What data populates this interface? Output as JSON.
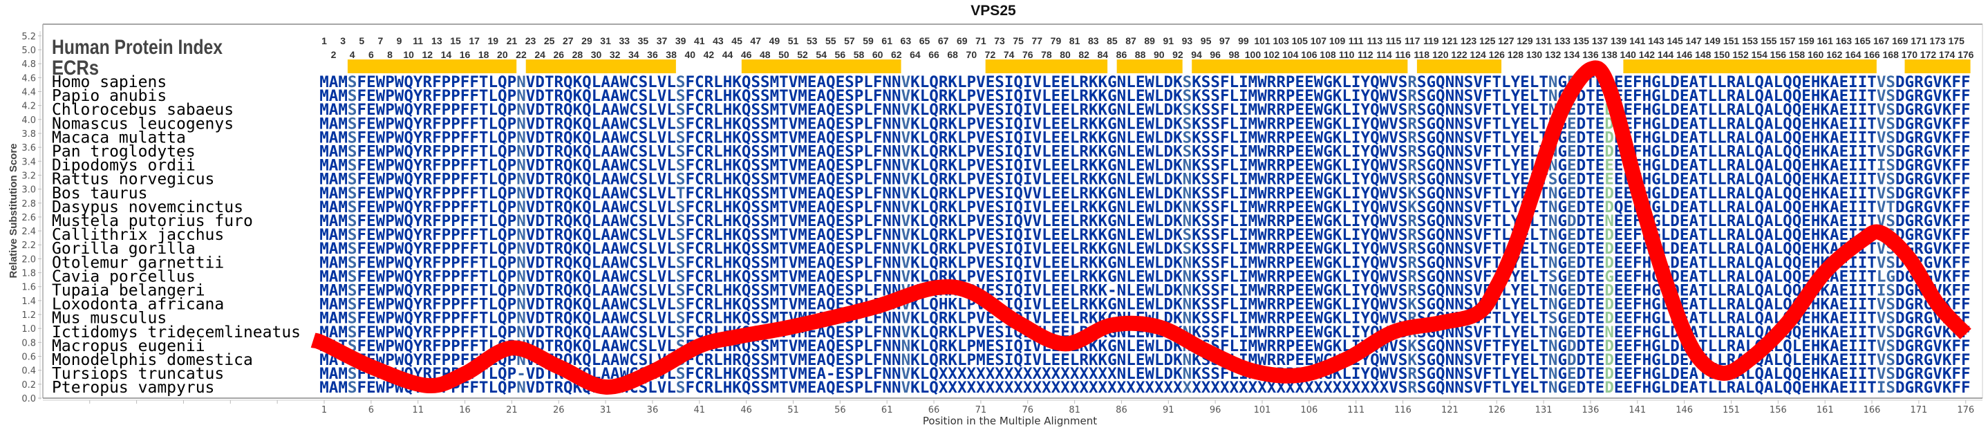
{
  "chart_data": {
    "type": "line",
    "title": "VPS25",
    "xlabel": "Position in the Multiple Alignment",
    "ylabel": "Relative Substitution Score",
    "ylim": [
      0.0,
      5.2
    ],
    "yticks": [
      "0.0",
      "0.2",
      "0.4",
      "0.6",
      "0.8",
      "1.0",
      "1.2",
      "1.4",
      "1.6",
      "1.8",
      "2.0",
      "2.2",
      "2.4",
      "2.6",
      "2.8",
      "3.0",
      "3.2",
      "3.4",
      "3.6",
      "3.8",
      "4.0",
      "4.2",
      "4.4",
      "4.6",
      "4.8",
      "5.0",
      "5.2"
    ],
    "xlim": [
      1,
      176
    ],
    "xtick_step": 5,
    "grid": false,
    "series": [
      {
        "name": "Relative Substitution Score",
        "color": "#ff0000",
        "x": [
          1,
          6,
          12,
          16,
          21,
          26,
          31,
          36,
          41,
          45,
          50,
          55,
          60,
          66,
          70,
          75,
          80,
          85,
          90,
          95,
          100,
          105,
          110,
          115,
          120,
          124,
          126,
          128,
          130,
          133,
          136,
          138,
          141,
          144,
          147,
          150,
          153,
          157,
          161,
          165,
          167,
          170,
          173,
          176
        ],
        "y": [
          0.78,
          0.45,
          0.18,
          0.35,
          0.72,
          0.45,
          0.16,
          0.38,
          0.75,
          0.88,
          1.0,
          1.15,
          1.32,
          1.58,
          1.52,
          1.08,
          0.78,
          1.05,
          1.02,
          0.68,
          0.39,
          0.33,
          0.56,
          0.95,
          1.08,
          1.22,
          1.6,
          2.2,
          3.0,
          4.15,
          4.72,
          4.45,
          3.0,
          1.68,
          0.68,
          0.36,
          0.56,
          1.08,
          1.81,
          2.27,
          2.37,
          2.0,
          1.35,
          0.92
        ]
      }
    ]
  },
  "header": {
    "index_label": "Human Protein Index",
    "ecr_label": "ECRs"
  },
  "ecr_regions": [
    [
      4,
      21
    ],
    [
      23,
      38
    ],
    [
      46,
      62
    ],
    [
      72,
      84
    ],
    [
      86,
      92
    ],
    [
      94,
      116
    ],
    [
      118,
      126
    ],
    [
      140,
      166
    ],
    [
      170,
      176
    ]
  ],
  "colors": {
    "ecr": "#ffc600",
    "residue_conserved": "#0033a0",
    "residue_variable": "#3d6aa6",
    "residue_green": "#96c896",
    "curve": "#ff0000"
  },
  "column_shading": {
    "variable": [
      4,
      22,
      39,
      63,
      93,
      117,
      132,
      134,
      167,
      168
    ],
    "green": [
      138
    ]
  },
  "reference_sequence": "MAMSFEWPWQYRFPPFFTLQPNVDTRQKQLAAWCSLVLSFCRLHKQSSMTVMEAQESPLFNNVKLQRKLPVESIQIVLEELRKKGNLEWLDKSKSSFLIMWRRPEEWGKLIYQWVSRSGQNNSVFTLYELTNGEDTEDEEFHGLDEATLLRALQALQQEHKAEIITVSDGRGVKFF",
  "species": [
    {
      "name": "Homo sapiens",
      "variants": {}
    },
    {
      "name": "Papio anubis",
      "variants": {}
    },
    {
      "name": "Chlorocebus sabaeus",
      "variants": {}
    },
    {
      "name": "Nomascus leucogenys",
      "variants": {}
    },
    {
      "name": "Macaca mulatta",
      "variants": {}
    },
    {
      "name": "Pan troglodytes",
      "variants": {}
    },
    {
      "name": "Dipodomys ordii",
      "variants": {
        "93": "N",
        "138": "E",
        "167": "I"
      }
    },
    {
      "name": "Rattus norvegicus",
      "variants": {
        "93": "N",
        "132": "S",
        "138": "E"
      }
    },
    {
      "name": "Bos taurus",
      "variants": {
        "39": "T",
        "76": "V",
        "93": "N",
        "117": "K"
      }
    },
    {
      "name": "Dasypus novemcinctus",
      "variants": {
        "93": "N",
        "117": "K",
        "139": "Q",
        "168": "T"
      }
    },
    {
      "name": "Mustela putorius furo",
      "variants": {
        "76": "V",
        "93": "N",
        "134": "D",
        "138": "N"
      }
    },
    {
      "name": "Callithrix jacchus",
      "variants": {}
    },
    {
      "name": "Gorilla gorilla",
      "variants": {}
    },
    {
      "name": "Otolemur garnettii",
      "variants": {
        "93": "N"
      }
    },
    {
      "name": "Cavia porcellus",
      "variants": {
        "93": "N",
        "132": "S",
        "138": "G",
        "167": "L",
        "168": "G"
      }
    },
    {
      "name": "Tupaia belangeri",
      "variants": {
        "85": "-",
        "93": "N",
        "167": "I"
      }
    },
    {
      "name": "Loxodonta africana",
      "variants": {
        "67": "H",
        "93": "N",
        "117": "K"
      }
    },
    {
      "name": "Mus musculus",
      "variants": {
        "93": "N",
        "132": "S"
      }
    },
    {
      "name": "Ictidomys tridecemlineatus",
      "variants": {
        "93": "N",
        "138": "N"
      }
    },
    {
      "name": "Macropus eugenii",
      "variants": {
        "3": "T",
        "45": "R",
        "63": "N",
        "71": "M",
        "93": "N",
        "117": "K",
        "127": "F",
        "134": "D",
        "158": "L"
      }
    },
    {
      "name": "Monodelphis domestica",
      "variants": {
        "3": "T",
        "45": "R",
        "63": "N",
        "71": "M",
        "93": "N",
        "117": "K",
        "127": "F",
        "134": "D",
        "158": "L"
      }
    },
    {
      "name": "Tursiops truncatus",
      "variants": {
        "22": "-",
        "55": "-",
        "67-85": "X",
        "93": "N"
      }
    },
    {
      "name": "Pteropus vampyrus",
      "variants": {
        "67-114": "X",
        "167": "I"
      }
    }
  ]
}
